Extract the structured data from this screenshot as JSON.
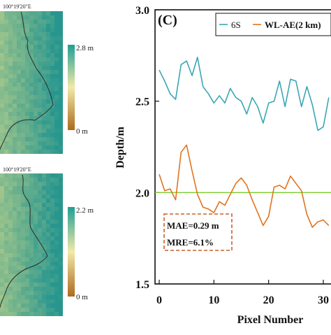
{
  "maps": [
    {
      "coord_label": "100°19'20\"E",
      "colorbar": {
        "max_label": "2.8 m",
        "min_label": "0 m",
        "colors": [
          "#ad6a1e",
          "#f2e9a8",
          "#1f9f94"
        ]
      }
    },
    {
      "coord_label": "100°19'20\"E",
      "colorbar": {
        "max_label": "2.2 m",
        "min_label": "0 m",
        "colors": [
          "#ad6a1e",
          "#f2e9a8",
          "#1f9f94"
        ]
      }
    }
  ],
  "chart_data": {
    "type": "line",
    "panel_label": "(C)",
    "xlabel": "Pixel Number",
    "ylabel": "Depth/m",
    "xlim": [
      0,
      32
    ],
    "ylim": [
      1.5,
      3.0
    ],
    "x_ticks": [
      "0",
      "10",
      "20",
      "30"
    ],
    "y_ticks": [
      "1.5",
      "2.0",
      "2.5",
      "3.0"
    ],
    "grid": false,
    "legend_position": "top-right",
    "reference_line": {
      "y": 2.0,
      "color": "#7ccf2c"
    },
    "series": [
      {
        "name": "6S",
        "color": "#3aa7b4",
        "x": [
          0,
          1,
          2,
          3,
          4,
          5,
          6,
          7,
          8,
          9,
          10,
          11,
          12,
          13,
          14,
          15,
          16,
          17,
          18,
          19,
          20,
          21,
          22,
          23,
          24,
          25,
          26,
          27,
          28,
          29,
          30,
          31
        ],
        "values": [
          2.67,
          2.61,
          2.54,
          2.51,
          2.7,
          2.72,
          2.64,
          2.74,
          2.58,
          2.54,
          2.49,
          2.53,
          2.49,
          2.57,
          2.52,
          2.5,
          2.43,
          2.52,
          2.47,
          2.38,
          2.49,
          2.5,
          2.61,
          2.47,
          2.62,
          2.61,
          2.47,
          2.58,
          2.48,
          2.34,
          2.36,
          2.52
        ]
      },
      {
        "name": "WL-AE(2 km)",
        "color": "#e0741f",
        "x": [
          0,
          1,
          2,
          3,
          4,
          5,
          6,
          7,
          8,
          9,
          10,
          11,
          12,
          13,
          14,
          15,
          16,
          17,
          18,
          19,
          20,
          21,
          22,
          23,
          24,
          25,
          26,
          27,
          28,
          29,
          30,
          31
        ],
        "values": [
          2.1,
          2.01,
          2.02,
          1.96,
          2.22,
          2.26,
          2.12,
          1.99,
          1.92,
          1.91,
          1.89,
          1.95,
          1.93,
          1.99,
          2.05,
          2.08,
          2.04,
          1.96,
          1.89,
          1.82,
          1.87,
          2.03,
          2.04,
          2.02,
          2.09,
          2.05,
          2.01,
          1.88,
          1.81,
          1.84,
          1.85,
          1.82
        ]
      }
    ],
    "annotations": [
      "MAE=0.29 m",
      "MRE=6.1%"
    ]
  }
}
